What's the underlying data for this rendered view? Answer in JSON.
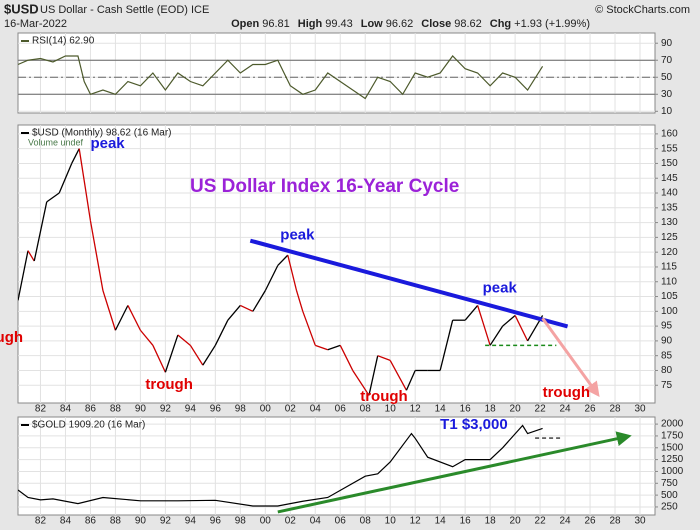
{
  "header": {
    "symbol": "$USD",
    "name": "US Dollar - Cash Settle (EOD) ICE",
    "date": "16-Mar-2022",
    "quote": [
      {
        "label": "Open",
        "value": 96.81
      },
      {
        "label": "High",
        "value": 99.43
      },
      {
        "label": "Low",
        "value": 96.62
      },
      {
        "label": "Close",
        "value": 98.62
      },
      {
        "label": "Chg",
        "value": "+1.93 (+1.99%)"
      }
    ],
    "credit": "© StockCharts.com"
  },
  "chart_data": [
    {
      "type": "line",
      "xlim": [
        1980.2,
        2031.2
      ],
      "ylim": [
        8,
        102
      ],
      "yticks": [
        10,
        30,
        50,
        70,
        90
      ],
      "xticks": [
        1982,
        1984,
        1986,
        1988,
        1990,
        1992,
        1994,
        1996,
        1998,
        2000,
        2002,
        2004,
        2006,
        2008,
        2010,
        2012,
        2014,
        2016,
        2018,
        2020,
        2022,
        2024,
        2026,
        2028,
        2030
      ],
      "levels": [
        {
          "value": 70,
          "style": "solid"
        },
        {
          "value": 50,
          "style": "dashdot"
        },
        {
          "value": 30,
          "style": "solid"
        }
      ],
      "x": [
        1980.2,
        1981,
        1982,
        1983,
        1984,
        1985,
        1985.5,
        1986,
        1987,
        1988,
        1989,
        1990,
        1991,
        1992,
        1993,
        1994,
        1995,
        1996,
        1997,
        1998,
        1999,
        2000,
        2001,
        2002,
        2003,
        2004,
        2005,
        2006,
        2007,
        2008,
        2009,
        2010,
        2011,
        2012,
        2013,
        2014,
        2015,
        2016,
        2017,
        2018,
        2019,
        2020,
        2021,
        2022.2
      ],
      "series": [
        {
          "name": "RSI(14) 62.90",
          "color": "#4d5a2c",
          "values": [
            65,
            70,
            72,
            68,
            75,
            75,
            45,
            30,
            35,
            30,
            45,
            40,
            55,
            35,
            55,
            45,
            40,
            55,
            70,
            55,
            65,
            65,
            70,
            40,
            30,
            35,
            55,
            45,
            35,
            25,
            50,
            45,
            30,
            55,
            50,
            55,
            75,
            60,
            55,
            40,
            55,
            50,
            35,
            62.9
          ]
        }
      ]
    },
    {
      "type": "line",
      "title": "US Dollar Index 16-Year Cycle",
      "note": "Volume undef",
      "xlim": [
        1980.2,
        2031.2
      ],
      "ylim": [
        69,
        163
      ],
      "yticks": [
        75,
        80,
        85,
        90,
        95,
        100,
        105,
        110,
        115,
        120,
        125,
        130,
        135,
        140,
        145,
        150,
        155,
        160
      ],
      "xticks": [
        {
          "value": 1982,
          "label": "82"
        },
        {
          "value": 1984,
          "label": "84"
        },
        {
          "value": 1986,
          "label": "86"
        },
        {
          "value": 1988,
          "label": "88"
        },
        {
          "value": 1990,
          "label": "90"
        },
        {
          "value": 1992,
          "label": "92"
        },
        {
          "value": 1994,
          "label": "94"
        },
        {
          "value": 1996,
          "label": "96"
        },
        {
          "value": 1998,
          "label": "98"
        },
        {
          "value": 2000,
          "label": "00"
        },
        {
          "value": 2002,
          "label": "02"
        },
        {
          "value": 2004,
          "label": "04"
        },
        {
          "value": 2006,
          "label": "06"
        },
        {
          "value": 2008,
          "label": "08"
        },
        {
          "value": 2010,
          "label": "10"
        },
        {
          "value": 2012,
          "label": "12"
        },
        {
          "value": 2014,
          "label": "14"
        },
        {
          "value": 2016,
          "label": "16"
        },
        {
          "value": 2018,
          "label": "18"
        },
        {
          "value": 2020,
          "label": "20"
        },
        {
          "value": 2022,
          "label": "22"
        },
        {
          "value": 2024,
          "label": "24"
        },
        {
          "value": 2026,
          "label": "26"
        },
        {
          "value": 2028,
          "label": "28"
        },
        {
          "value": 2030,
          "label": "30"
        }
      ],
      "x": [
        1980.2,
        1981,
        1981.5,
        1982.5,
        1983.5,
        1984.5,
        1985.1,
        1986,
        1987,
        1988,
        1989,
        1990,
        1991,
        1992,
        1993,
        1994,
        1995,
        1996,
        1997,
        1998,
        1999,
        2000,
        2001,
        2001.8,
        2002.5,
        2003,
        2004,
        2005,
        2006,
        2007,
        2008.3,
        2009,
        2010,
        2011.3,
        2012,
        2013,
        2014,
        2015,
        2016,
        2017,
        2018,
        2019,
        2020,
        2021,
        2022.2
      ],
      "series": [
        {
          "name": "$USD (Monthly) 98.62 (16 Mar)",
          "color": "#000000",
          "down_color": "#cc0000",
          "values": [
            103.7,
            120.5,
            117,
            137,
            140,
            150,
            155,
            130.6,
            107,
            93.6,
            102,
            93.6,
            88.5,
            79.4,
            92,
            88.5,
            81.8,
            88.5,
            97,
            102,
            100,
            107,
            115.5,
            119,
            107,
            100,
            88.5,
            87,
            88.5,
            80,
            71.6,
            85,
            83.4,
            73.3,
            80,
            80,
            80,
            97,
            97,
            102,
            88.5,
            95,
            98.6,
            90,
            98.62
          ]
        }
      ],
      "lines": [
        {
          "x": [
            1998.8,
            2024.2
          ],
          "y": [
            123.9,
            94.9
          ],
          "color": "#1a1adc",
          "style": "solid",
          "width": 4
        },
        {
          "x": [
            2022.2,
            2026.2
          ],
          "y": [
            97.6,
            74.3
          ],
          "color": "#f4a3a3",
          "style": "arrow",
          "width": 3
        },
        {
          "x": [
            2017.6,
            2023.3
          ],
          "y": [
            88.5,
            88.5
          ],
          "color": "#1a8a1a",
          "style": "dashed",
          "width": 1.5
        }
      ],
      "annotations": [
        {
          "text": "peak",
          "x": 1986,
          "y": 156.6,
          "color": "#1a1adc"
        },
        {
          "text": "peak",
          "x": 2001.2,
          "y": 125.6,
          "color": "#1a1adc"
        },
        {
          "text": "peak",
          "x": 2017.4,
          "y": 107.7,
          "color": "#1a1adc"
        },
        {
          "text": "trough",
          "x": 1976.8,
          "y": 90.9,
          "color": "#e00000"
        },
        {
          "text": "trough",
          "x": 1990.4,
          "y": 75,
          "color": "#e00000"
        },
        {
          "text": "trough",
          "x": 2007.6,
          "y": 71,
          "color": "#e00000"
        },
        {
          "text": "trough",
          "x": 2022.2,
          "y": 72.3,
          "color": "#e00000"
        }
      ]
    },
    {
      "type": "line",
      "xlim": [
        1980.2,
        2031.2
      ],
      "ylim": [
        80,
        2150
      ],
      "yticks": [
        250,
        500,
        750,
        1000,
        1250,
        1500,
        1750,
        2000
      ],
      "xticks": [
        {
          "value": 1982,
          "label": "82"
        },
        {
          "value": 1984,
          "label": "84"
        },
        {
          "value": 1986,
          "label": "86"
        },
        {
          "value": 1988,
          "label": "88"
        },
        {
          "value": 1990,
          "label": "90"
        },
        {
          "value": 1992,
          "label": "92"
        },
        {
          "value": 1994,
          "label": "94"
        },
        {
          "value": 1996,
          "label": "96"
        },
        {
          "value": 1998,
          "label": "98"
        },
        {
          "value": 2000,
          "label": "00"
        },
        {
          "value": 2002,
          "label": "02"
        },
        {
          "value": 2004,
          "label": "04"
        },
        {
          "value": 2006,
          "label": "06"
        },
        {
          "value": 2008,
          "label": "08"
        },
        {
          "value": 2010,
          "label": "10"
        },
        {
          "value": 2012,
          "label": "12"
        },
        {
          "value": 2014,
          "label": "14"
        },
        {
          "value": 2016,
          "label": "16"
        },
        {
          "value": 2018,
          "label": "18"
        },
        {
          "value": 2020,
          "label": "20"
        },
        {
          "value": 2022,
          "label": "22"
        },
        {
          "value": 2024,
          "label": "24"
        },
        {
          "value": 2026,
          "label": "26"
        },
        {
          "value": 2028,
          "label": "28"
        },
        {
          "value": 2030,
          "label": "30"
        }
      ],
      "x": [
        1980.2,
        1981,
        1982,
        1983,
        1985,
        1987,
        1990,
        1993,
        1996,
        1999,
        2001,
        2003,
        2005,
        2006,
        2008,
        2009,
        2010,
        2011.7,
        2012,
        2013,
        2015,
        2016,
        2018,
        2019,
        2020.6,
        2021,
        2022.2
      ],
      "series": [
        {
          "name": "$GOLD 1909.20 (16 Mar)",
          "color": "#000000",
          "values": [
            608,
            450,
            400,
            420,
            320,
            450,
            380,
            380,
            390,
            270,
            270,
            370,
            450,
            600,
            900,
            950,
            1200,
            1800,
            1700,
            1300,
            1100,
            1250,
            1250,
            1500,
            1970,
            1800,
            1909.2
          ]
        }
      ],
      "lines": [
        {
          "x": [
            2001,
            2028.4
          ],
          "y": [
            144,
            1705
          ],
          "color": "#2a8a2a",
          "style": "arrow",
          "width": 3
        },
        {
          "x": [
            2021.6,
            2023.6
          ],
          "y": [
            1705,
            1705
          ],
          "color": "#000000",
          "style": "dashed",
          "width": 1.2
        }
      ],
      "annotations": [
        {
          "text": "T1 $3,000",
          "x": 2014,
          "y": 1979,
          "color": "#1a1adc"
        }
      ]
    }
  ]
}
